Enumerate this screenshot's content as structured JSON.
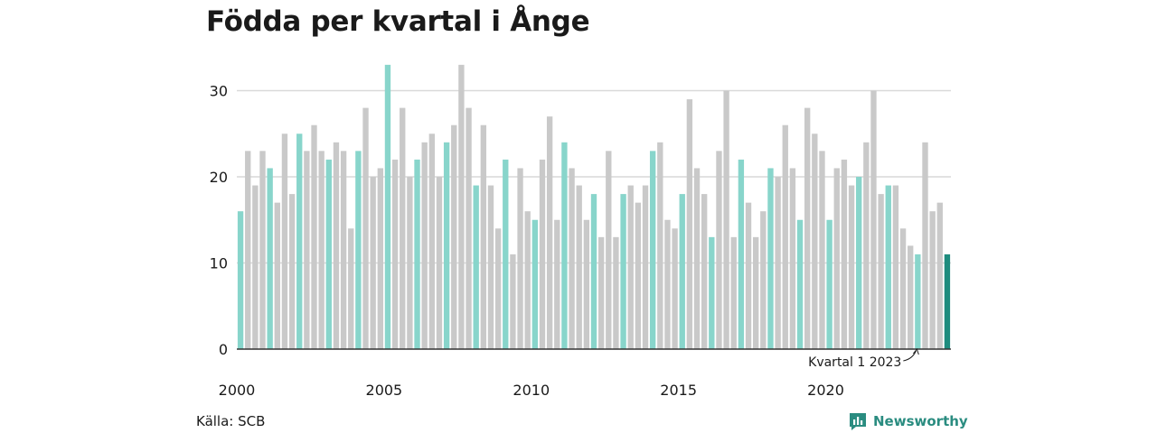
{
  "chart_data": {
    "type": "bar",
    "title": "Födda per kvartal i Ånge",
    "xlabel": "",
    "ylabel": "",
    "ylim": [
      0,
      33
    ],
    "yticks": [
      0,
      10,
      20,
      30
    ],
    "xtick_labels": [
      "2000",
      "2005",
      "2010",
      "2015",
      "2020"
    ],
    "x_start_year": 2000,
    "grid": true,
    "legend": "none",
    "colors": {
      "q1": "#88d5cb",
      "other": "#c9c9c9",
      "latest": "#1e8c7e",
      "gridline": "#d9d9d9",
      "axis": "#333333"
    },
    "annotation": "Kvartal 1 2023",
    "values": [
      16,
      23,
      19,
      23,
      21,
      17,
      25,
      18,
      25,
      23,
      26,
      23,
      22,
      24,
      23,
      14,
      23,
      28,
      20,
      21,
      33,
      22,
      28,
      20,
      22,
      24,
      25,
      20,
      24,
      26,
      33,
      28,
      19,
      26,
      19,
      14,
      22,
      11,
      21,
      16,
      15,
      22,
      27,
      15,
      24,
      21,
      19,
      15,
      18,
      13,
      23,
      13,
      18,
      19,
      17,
      19,
      23,
      24,
      15,
      14,
      18,
      29,
      21,
      18,
      13,
      23,
      30,
      13,
      22,
      17,
      13,
      16,
      21,
      20,
      26,
      21,
      15,
      28,
      25,
      23,
      15,
      21,
      22,
      19,
      20,
      24,
      30,
      18,
      19,
      19,
      14,
      12,
      11,
      24,
      16,
      17,
      11
    ]
  },
  "source": "Källa: SCB",
  "brand": {
    "name": "Newsworthy",
    "icon": "newsworthy-logo-icon"
  }
}
